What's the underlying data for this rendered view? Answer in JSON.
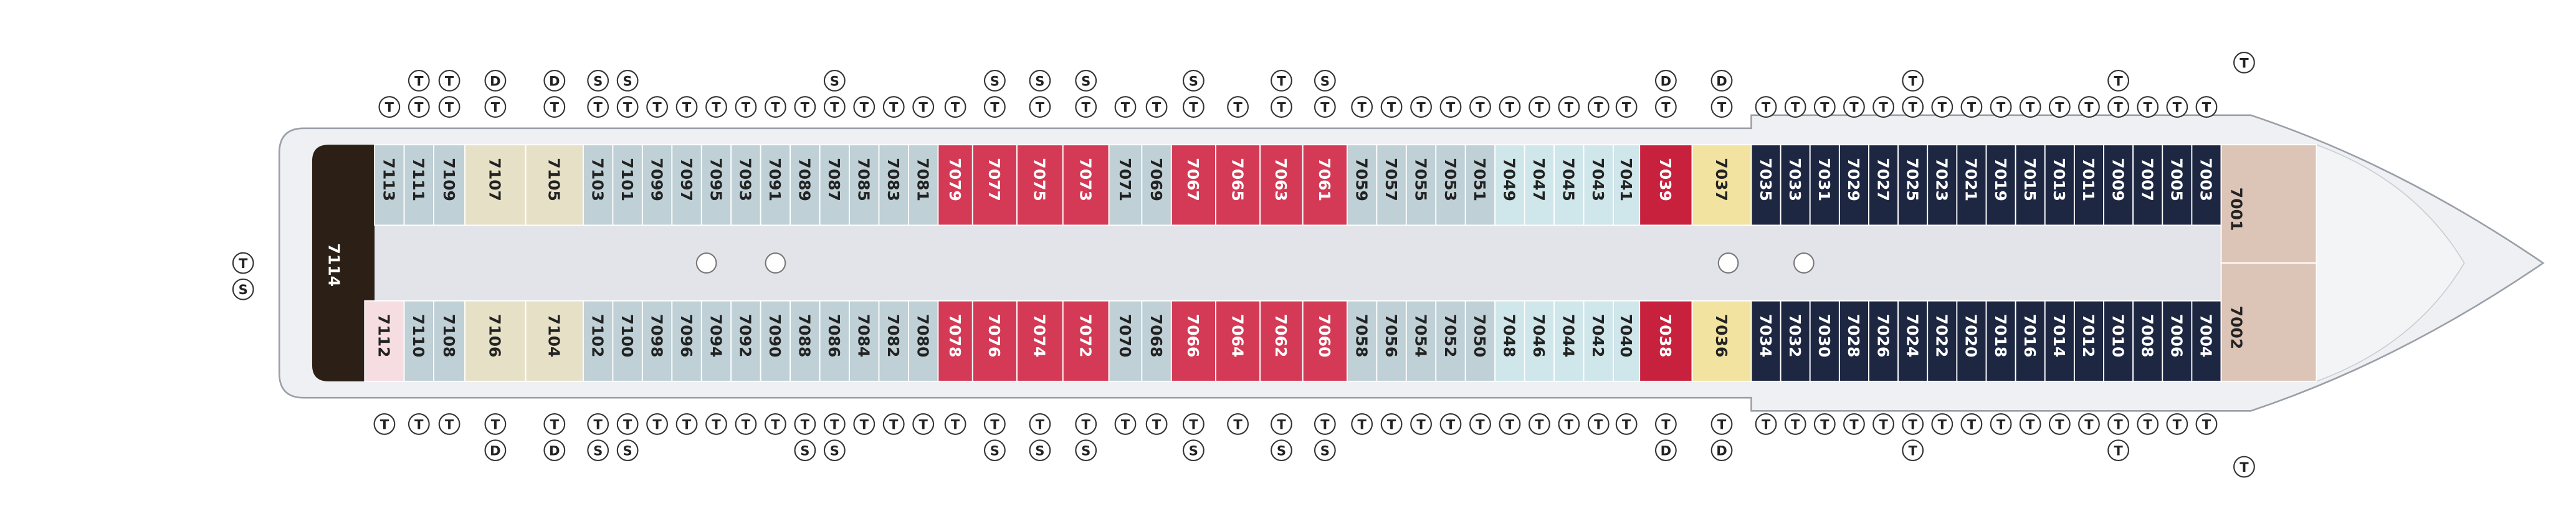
{
  "deck_plan": {
    "stern_cabin": {
      "number": "7114",
      "color": "#2b1f16"
    },
    "stern_icons": [
      "T",
      "S"
    ],
    "bow_cabins": [
      {
        "number": "7001",
        "color": "#dcc4b6"
      },
      {
        "number": "7002",
        "color": "#dcc4b6"
      }
    ],
    "bow_icons_top": [
      "T"
    ],
    "bow_icons_bottom": [
      "T"
    ],
    "cabins_top": [
      {
        "number": "7113",
        "color": "#bfd0d6",
        "icons": [
          "T"
        ]
      },
      {
        "number": "7111",
        "color": "#bfd0d6",
        "icons": [
          "T",
          "T"
        ]
      },
      {
        "number": "7109",
        "color": "#bfd0d6",
        "icons": [
          "T",
          "T"
        ]
      },
      {
        "number": "7107",
        "color": "#e6e0c6",
        "icons": [
          "T",
          "D"
        ]
      },
      {
        "number": "7105",
        "color": "#e6e0c6",
        "icons": [
          "T",
          "D"
        ]
      },
      {
        "number": "7103",
        "color": "#bfd0d6",
        "icons": [
          "T",
          "S"
        ]
      },
      {
        "number": "7101",
        "color": "#bfd0d6",
        "icons": [
          "T",
          "S"
        ]
      },
      {
        "number": "7099",
        "color": "#bfd0d6",
        "icons": [
          "T"
        ]
      },
      {
        "number": "7097",
        "color": "#bfd0d6",
        "icons": [
          "T"
        ]
      },
      {
        "number": "7095",
        "color": "#bfd0d6",
        "icons": [
          "T"
        ]
      },
      {
        "number": "7093",
        "color": "#bfd0d6",
        "icons": [
          "T"
        ]
      },
      {
        "number": "7091",
        "color": "#bfd0d6",
        "icons": [
          "T"
        ]
      },
      {
        "number": "7089",
        "color": "#bfd0d6",
        "icons": [
          "T"
        ]
      },
      {
        "number": "7087",
        "color": "#bfd0d6",
        "icons": [
          "T",
          "S"
        ]
      },
      {
        "number": "7085",
        "color": "#bfd0d6",
        "icons": [
          "T"
        ]
      },
      {
        "number": "7083",
        "color": "#bfd0d6",
        "icons": [
          "T"
        ]
      },
      {
        "number": "7081",
        "color": "#bfd0d6",
        "icons": [
          "T"
        ]
      },
      {
        "number": "7079",
        "color": "#d43a55",
        "icons": [
          "T"
        ]
      },
      {
        "number": "7077",
        "color": "#d43a55",
        "icons": [
          "T",
          "S"
        ]
      },
      {
        "number": "7075",
        "color": "#d43a55",
        "icons": [
          "T",
          "S"
        ]
      },
      {
        "number": "7073",
        "color": "#d43a55",
        "icons": [
          "T",
          "S"
        ]
      },
      {
        "number": "7071",
        "color": "#bfd0d6",
        "icons": [
          "T"
        ]
      },
      {
        "number": "7069",
        "color": "#bfd0d6",
        "icons": [
          "T"
        ]
      },
      {
        "number": "7067",
        "color": "#d43a55",
        "icons": [
          "T",
          "S"
        ]
      },
      {
        "number": "7065",
        "color": "#d43a55",
        "icons": [
          "T"
        ]
      },
      {
        "number": "7063",
        "color": "#d43a55",
        "icons": [
          "T",
          "T"
        ]
      },
      {
        "number": "7061",
        "color": "#d43a55",
        "icons": [
          "T",
          "S"
        ]
      },
      {
        "number": "7059",
        "color": "#bfd0d6",
        "icons": [
          "T"
        ]
      },
      {
        "number": "7057",
        "color": "#bfd0d6",
        "icons": [
          "T"
        ]
      },
      {
        "number": "7055",
        "color": "#bfd0d6",
        "icons": [
          "T"
        ]
      },
      {
        "number": "7053",
        "color": "#bfd0d6",
        "icons": [
          "T"
        ]
      },
      {
        "number": "7051",
        "color": "#bfd0d6",
        "icons": [
          "T"
        ]
      },
      {
        "number": "7049",
        "color": "#cfe6ea",
        "icons": [
          "T"
        ]
      },
      {
        "number": "7047",
        "color": "#cfe6ea",
        "icons": [
          "T"
        ]
      },
      {
        "number": "7045",
        "color": "#cfe6ea",
        "icons": [
          "T"
        ]
      },
      {
        "number": "7043",
        "color": "#cfe6ea",
        "icons": [
          "T"
        ]
      },
      {
        "number": "7041",
        "color": "#cfe6ea",
        "icons": [
          "T"
        ]
      },
      {
        "number": "7039",
        "color": "#c8213d",
        "icons": [
          "T",
          "D"
        ]
      },
      {
        "number": "7037",
        "color": "#f3e3a0",
        "icons": [
          "T",
          "D"
        ]
      },
      {
        "number": "7035",
        "color": "#1e2742",
        "icons": [
          "T"
        ]
      },
      {
        "number": "7033",
        "color": "#1e2742",
        "icons": [
          "T"
        ]
      },
      {
        "number": "7031",
        "color": "#1e2742",
        "icons": [
          "T"
        ]
      },
      {
        "number": "7029",
        "color": "#1e2742",
        "icons": [
          "T"
        ]
      },
      {
        "number": "7027",
        "color": "#1e2742",
        "icons": [
          "T"
        ]
      },
      {
        "number": "7025",
        "color": "#1e2742",
        "icons": [
          "T",
          "T"
        ]
      },
      {
        "number": "7023",
        "color": "#1e2742",
        "icons": [
          "T"
        ]
      },
      {
        "number": "7021",
        "color": "#1e2742",
        "icons": [
          "T"
        ]
      },
      {
        "number": "7019",
        "color": "#1e2742",
        "icons": [
          "T"
        ]
      },
      {
        "number": "7015",
        "color": "#1e2742",
        "icons": [
          "T"
        ]
      },
      {
        "number": "7013",
        "color": "#1e2742",
        "icons": [
          "T"
        ]
      },
      {
        "number": "7011",
        "color": "#1e2742",
        "icons": [
          "T"
        ]
      },
      {
        "number": "7009",
        "color": "#1e2742",
        "icons": [
          "T",
          "T"
        ]
      },
      {
        "number": "7007",
        "color": "#1e2742",
        "icons": [
          "T"
        ]
      },
      {
        "number": "7005",
        "color": "#1e2742",
        "icons": [
          "T"
        ]
      },
      {
        "number": "7003",
        "color": "#1e2742",
        "icons": [
          "T"
        ]
      }
    ],
    "cabins_bottom": [
      {
        "number": "7112",
        "color": "#f5dde2",
        "icons": [
          "T"
        ]
      },
      {
        "number": "7110",
        "color": "#bfd0d6",
        "icons": [
          "T"
        ]
      },
      {
        "number": "7108",
        "color": "#bfd0d6",
        "icons": [
          "T"
        ]
      },
      {
        "number": "7106",
        "color": "#e6e0c6",
        "icons": [
          "T",
          "D"
        ]
      },
      {
        "number": "7104",
        "color": "#e6e0c6",
        "icons": [
          "T",
          "D"
        ]
      },
      {
        "number": "7102",
        "color": "#bfd0d6",
        "icons": [
          "T",
          "S"
        ]
      },
      {
        "number": "7100",
        "color": "#bfd0d6",
        "icons": [
          "T",
          "S"
        ]
      },
      {
        "number": "7098",
        "color": "#bfd0d6",
        "icons": [
          "T"
        ]
      },
      {
        "number": "7096",
        "color": "#bfd0d6",
        "icons": [
          "T"
        ]
      },
      {
        "number": "7094",
        "color": "#bfd0d6",
        "icons": [
          "T"
        ]
      },
      {
        "number": "7092",
        "color": "#bfd0d6",
        "icons": [
          "T"
        ]
      },
      {
        "number": "7090",
        "color": "#bfd0d6",
        "icons": [
          "T"
        ]
      },
      {
        "number": "7088",
        "color": "#bfd0d6",
        "icons": [
          "T",
          "S"
        ]
      },
      {
        "number": "7086",
        "color": "#bfd0d6",
        "icons": [
          "T",
          "S"
        ]
      },
      {
        "number": "7084",
        "color": "#bfd0d6",
        "icons": [
          "T"
        ]
      },
      {
        "number": "7082",
        "color": "#bfd0d6",
        "icons": [
          "T"
        ]
      },
      {
        "number": "7080",
        "color": "#bfd0d6",
        "icons": [
          "T"
        ]
      },
      {
        "number": "7078",
        "color": "#d43a55",
        "icons": [
          "T"
        ]
      },
      {
        "number": "7076",
        "color": "#d43a55",
        "icons": [
          "T",
          "S"
        ]
      },
      {
        "number": "7074",
        "color": "#d43a55",
        "icons": [
          "T",
          "S"
        ]
      },
      {
        "number": "7072",
        "color": "#d43a55",
        "icons": [
          "T",
          "S"
        ]
      },
      {
        "number": "7070",
        "color": "#bfd0d6",
        "icons": [
          "T"
        ]
      },
      {
        "number": "7068",
        "color": "#bfd0d6",
        "icons": [
          "T"
        ]
      },
      {
        "number": "7066",
        "color": "#d43a55",
        "icons": [
          "T",
          "S"
        ]
      },
      {
        "number": "7064",
        "color": "#d43a55",
        "icons": [
          "T"
        ]
      },
      {
        "number": "7062",
        "color": "#d43a55",
        "icons": [
          "T",
          "S"
        ]
      },
      {
        "number": "7060",
        "color": "#d43a55",
        "icons": [
          "T",
          "S"
        ]
      },
      {
        "number": "7058",
        "color": "#bfd0d6",
        "icons": [
          "T"
        ]
      },
      {
        "number": "7056",
        "color": "#bfd0d6",
        "icons": [
          "T"
        ]
      },
      {
        "number": "7054",
        "color": "#bfd0d6",
        "icons": [
          "T"
        ]
      },
      {
        "number": "7052",
        "color": "#bfd0d6",
        "icons": [
          "T"
        ]
      },
      {
        "number": "7050",
        "color": "#bfd0d6",
        "icons": [
          "T"
        ]
      },
      {
        "number": "7048",
        "color": "#cfe6ea",
        "icons": [
          "T"
        ]
      },
      {
        "number": "7046",
        "color": "#cfe6ea",
        "icons": [
          "T"
        ]
      },
      {
        "number": "7044",
        "color": "#cfe6ea",
        "icons": [
          "T"
        ]
      },
      {
        "number": "7042",
        "color": "#cfe6ea",
        "icons": [
          "T"
        ]
      },
      {
        "number": "7040",
        "color": "#cfe6ea",
        "icons": [
          "T"
        ]
      },
      {
        "number": "7038",
        "color": "#c8213d",
        "icons": [
          "T",
          "D"
        ]
      },
      {
        "number": "7036",
        "color": "#f3e3a0",
        "icons": [
          "T",
          "D"
        ]
      },
      {
        "number": "7034",
        "color": "#1e2742",
        "icons": [
          "T"
        ]
      },
      {
        "number": "7032",
        "color": "#1e2742",
        "icons": [
          "T"
        ]
      },
      {
        "number": "7030",
        "color": "#1e2742",
        "icons": [
          "T"
        ]
      },
      {
        "number": "7028",
        "color": "#1e2742",
        "icons": [
          "T"
        ]
      },
      {
        "number": "7026",
        "color": "#1e2742",
        "icons": [
          "T"
        ]
      },
      {
        "number": "7024",
        "color": "#1e2742",
        "icons": [
          "T",
          "T"
        ]
      },
      {
        "number": "7022",
        "color": "#1e2742",
        "icons": [
          "T"
        ]
      },
      {
        "number": "7020",
        "color": "#1e2742",
        "icons": [
          "T"
        ]
      },
      {
        "number": "7018",
        "color": "#1e2742",
        "icons": [
          "T"
        ]
      },
      {
        "number": "7016",
        "color": "#1e2742",
        "icons": [
          "T"
        ]
      },
      {
        "number": "7014",
        "color": "#1e2742",
        "icons": [
          "T"
        ]
      },
      {
        "number": "7012",
        "color": "#1e2742",
        "icons": [
          "T"
        ]
      },
      {
        "number": "7010",
        "color": "#1e2742",
        "icons": [
          "T",
          "T"
        ]
      },
      {
        "number": "7008",
        "color": "#1e2742",
        "icons": [
          "T"
        ]
      },
      {
        "number": "7006",
        "color": "#1e2742",
        "icons": [
          "T"
        ]
      },
      {
        "number": "7004",
        "color": "#1e2742",
        "icons": [
          "T"
        ]
      }
    ]
  }
}
